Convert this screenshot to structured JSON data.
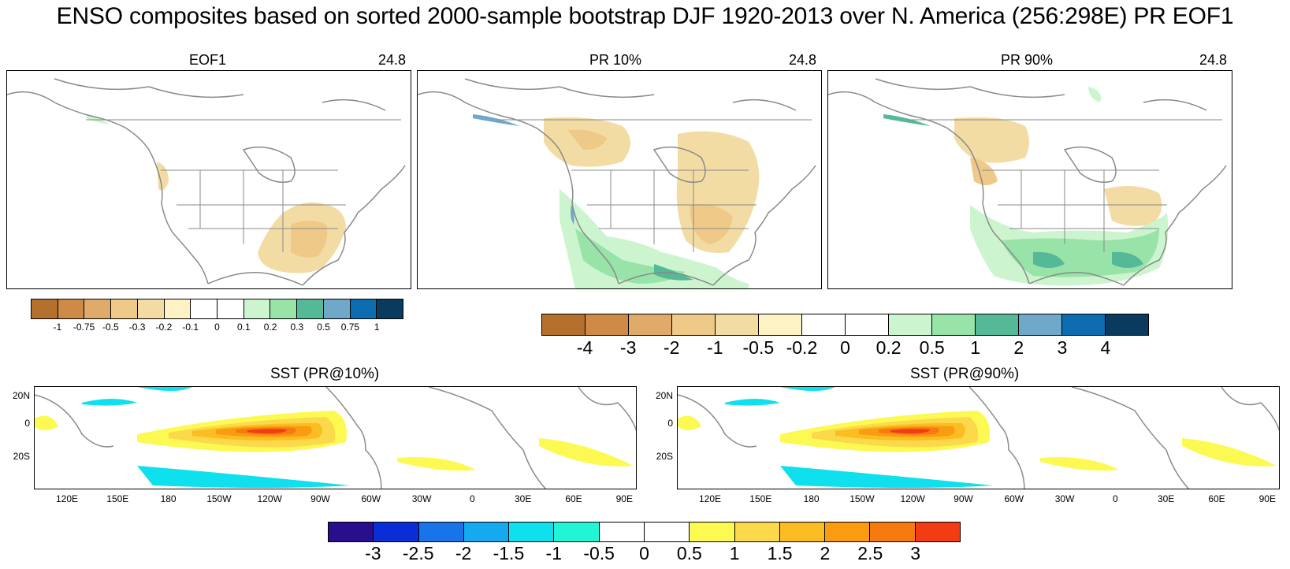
{
  "title": "ENSO composites based on sorted 2000-sample bootstrap DJF 1920-2013 over N. America (256:298E) PR EOF1",
  "panels": [
    {
      "title": "EOF1",
      "value": "24.8"
    },
    {
      "title": "PR 10%",
      "value": "24.8"
    },
    {
      "title": "PR 90%",
      "value": "24.8"
    }
  ],
  "sst_panels": [
    {
      "title": "SST (PR@10%)"
    },
    {
      "title": "SST (PR@90%)"
    }
  ],
  "chart_data": [
    {
      "type": "heatmap",
      "name": "EOF1 colorbar",
      "levels": [
        "-1",
        "-0.75",
        "-0.5",
        "-0.3",
        "-0.2",
        "-0.1",
        "0",
        "0.1",
        "0.2",
        "0.3",
        "0.5",
        "0.75",
        "1"
      ],
      "colors": [
        "#b5702e",
        "#cf8a48",
        "#e0aa6a",
        "#efc988",
        "#f3dca4",
        "#fdf2c3",
        "#ffffff",
        "#ffffff",
        "#ccf5cf",
        "#97e3a8",
        "#55b896",
        "#70a8c9",
        "#0d6cb0",
        "#0a3a5e"
      ]
    },
    {
      "type": "heatmap",
      "name": "PR colorbar",
      "levels": [
        "-4",
        "-3",
        "-2",
        "-1",
        "-0.5",
        "-0.2",
        "0",
        "0.2",
        "0.5",
        "1",
        "2",
        "3",
        "4"
      ],
      "colors": [
        "#b5702e",
        "#cf8a48",
        "#e0aa6a",
        "#efc988",
        "#f3dca4",
        "#fdf2c3",
        "#ffffff",
        "#ffffff",
        "#ccf5cf",
        "#97e3a8",
        "#55b896",
        "#70a8c9",
        "#0d6cb0",
        "#0a3a5e"
      ]
    },
    {
      "type": "heatmap",
      "name": "SST colorbar",
      "levels": [
        "-3",
        "-2.5",
        "-2",
        "-1.5",
        "-1",
        "-0.5",
        "0",
        "0.5",
        "1",
        "1.5",
        "2",
        "2.5",
        "3"
      ],
      "colors": [
        "#2a0f8c",
        "#0a2ed6",
        "#1874e8",
        "#15aaf0",
        "#0fe0ee",
        "#22f5d6",
        "#ffffff",
        "#ffffff",
        "#fcfa52",
        "#fcd94a",
        "#fbbd21",
        "#f99c12",
        "#f57a10",
        "#f23c14"
      ]
    },
    {
      "type": "heatmap",
      "name": "SST map axes",
      "x_ticks": [
        "120E",
        "150E",
        "180",
        "150W",
        "120W",
        "90W",
        "60W",
        "30W",
        "0",
        "30E",
        "60E",
        "90E"
      ],
      "y_ticks": [
        "20N",
        "0",
        "20S"
      ]
    }
  ]
}
